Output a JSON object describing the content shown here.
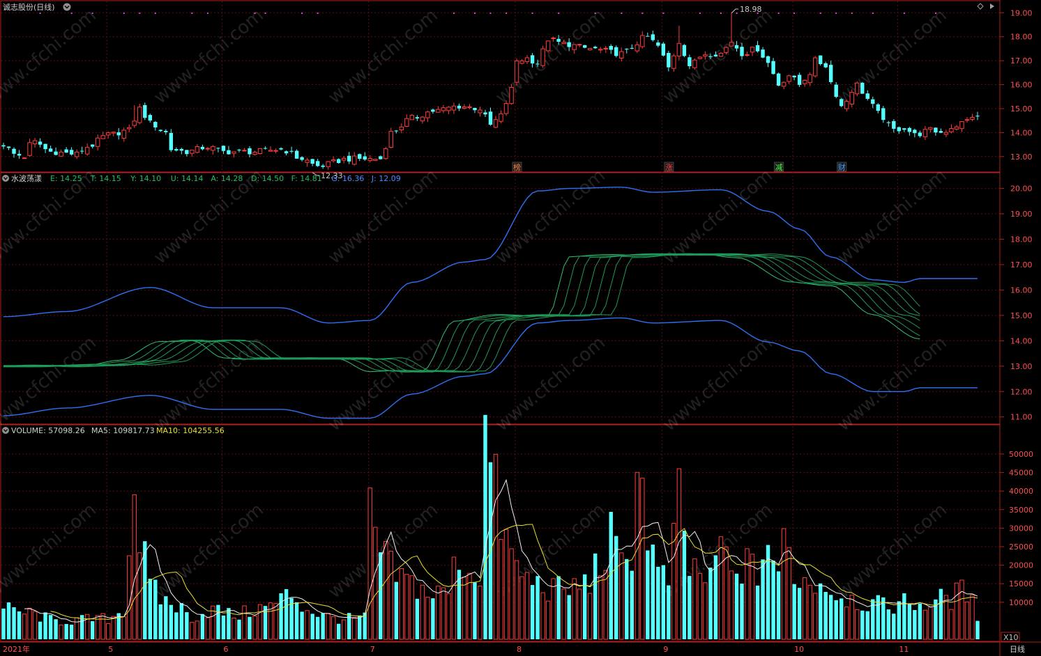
{
  "header": {
    "title": "诚志股份(日线)",
    "indicator_name": "水波荡漾",
    "indicator_values": [
      {
        "key": "E",
        "val": "14.25",
        "color": "#22c060"
      },
      {
        "key": "T",
        "val": "14.15",
        "color": "#22c060"
      },
      {
        "key": "Y",
        "val": "14.10",
        "color": "#22c060"
      },
      {
        "key": "U",
        "val": "14.14",
        "color": "#22c060"
      },
      {
        "key": "A",
        "val": "14.28",
        "color": "#22c060"
      },
      {
        "key": "D",
        "val": "14.50",
        "color": "#22c060"
      },
      {
        "key": "F",
        "val": "14.81",
        "color": "#22c060"
      },
      {
        "key": "G",
        "val": "16.36",
        "color": "#4a8cff"
      },
      {
        "key": "J",
        "val": "12.09",
        "color": "#4a8cff"
      }
    ],
    "volume_label": "VOLUME: 57098.26",
    "ma5_label": "MA5: 109817.73",
    "ma10_label": "MA10: 104255.56",
    "volume_unit": "X10",
    "period_label": "日线",
    "watermark": "www.cfchi.com"
  },
  "chart_data": {
    "type": "candlestick",
    "price_axis": {
      "ylim": [
        12.5,
        19.3
      ],
      "ticks": [
        13.0,
        14.0,
        15.0,
        16.0,
        17.0,
        18.0,
        19.0
      ]
    },
    "indicator_axis": {
      "ylim": [
        10.8,
        20.4
      ],
      "ticks": [
        11.0,
        12.0,
        13.0,
        14.0,
        15.0,
        16.0,
        17.0,
        18.0,
        19.0,
        20.0
      ]
    },
    "volume_axis": {
      "ylim": [
        0,
        56000
      ],
      "ticks": [
        10000,
        15000,
        20000,
        25000,
        30000,
        35000,
        40000,
        45000,
        50000
      ]
    },
    "x_labels": [
      {
        "i": 0,
        "text": "2021年"
      },
      {
        "i": 20,
        "text": "5"
      },
      {
        "i": 42,
        "text": "6"
      },
      {
        "i": 70,
        "text": "7"
      },
      {
        "i": 98,
        "text": "8"
      },
      {
        "i": 126,
        "text": "9"
      },
      {
        "i": 151,
        "text": "10"
      },
      {
        "i": 171,
        "text": "11"
      }
    ],
    "annotations": [
      {
        "text": "18.98",
        "i": 139,
        "value": 18.98
      },
      {
        "text": "12.33",
        "i": 59,
        "value": 12.33
      }
    ],
    "event_markers": [
      {
        "text": "榜",
        "i": 98,
        "color": "#ff8040"
      },
      {
        "text": "涨",
        "i": 127,
        "color": "#ff4040"
      },
      {
        "text": "减",
        "i": 148,
        "color": "#40ff40"
      },
      {
        "text": "财",
        "i": 160,
        "color": "#40a0ff"
      }
    ],
    "close_anchors": [
      [
        0,
        13.5
      ],
      [
        2,
        13.1
      ],
      [
        4,
        13.0
      ],
      [
        5,
        13.5
      ],
      [
        6,
        13.6
      ],
      [
        9,
        13.2
      ],
      [
        14,
        13.1
      ],
      [
        16,
        13.4
      ],
      [
        20,
        13.9
      ],
      [
        24,
        14.1
      ],
      [
        26,
        15.0
      ],
      [
        28,
        14.4
      ],
      [
        31,
        14.0
      ],
      [
        32,
        13.3
      ],
      [
        35,
        13.2
      ],
      [
        39,
        13.4
      ],
      [
        42,
        13.2
      ],
      [
        48,
        13.2
      ],
      [
        53,
        13.3
      ],
      [
        57,
        12.9
      ],
      [
        60,
        12.6
      ],
      [
        66,
        12.9
      ],
      [
        72,
        12.9
      ],
      [
        74,
        14.0
      ],
      [
        78,
        14.6
      ],
      [
        82,
        14.9
      ],
      [
        87,
        15.1
      ],
      [
        91,
        15.0
      ],
      [
        93,
        14.3
      ],
      [
        95,
        14.7
      ],
      [
        97,
        15.8
      ],
      [
        98,
        17.0
      ],
      [
        100,
        17.1
      ],
      [
        102,
        16.9
      ],
      [
        104,
        17.9
      ],
      [
        107,
        17.7
      ],
      [
        112,
        17.5
      ],
      [
        118,
        17.3
      ],
      [
        123,
        18.0
      ],
      [
        125,
        17.6
      ],
      [
        127,
        16.7
      ],
      [
        129,
        17.8
      ],
      [
        131,
        16.8
      ],
      [
        134,
        17.3
      ],
      [
        137,
        17.3
      ],
      [
        139,
        17.8
      ],
      [
        141,
        17.3
      ],
      [
        144,
        17.5
      ],
      [
        146,
        16.9
      ],
      [
        148,
        16.0
      ],
      [
        150,
        16.4
      ],
      [
        152,
        16.0
      ],
      [
        154,
        16.5
      ],
      [
        155,
        17.0
      ],
      [
        157,
        16.8
      ],
      [
        158,
        16.1
      ],
      [
        160,
        15.1
      ],
      [
        163,
        16.0
      ],
      [
        165,
        15.4
      ],
      [
        167,
        14.8
      ],
      [
        170,
        14.1
      ],
      [
        172,
        14.2
      ],
      [
        174,
        13.9
      ],
      [
        177,
        14.1
      ],
      [
        179,
        14.0
      ],
      [
        182,
        14.3
      ],
      [
        184,
        14.5
      ],
      [
        185,
        14.7
      ],
      [
        186,
        14.6
      ]
    ],
    "candle_count": 187,
    "volume_anchors": [
      [
        0,
        8000
      ],
      [
        5,
        7000
      ],
      [
        10,
        5000
      ],
      [
        20,
        5500
      ],
      [
        23,
        8000
      ],
      [
        25,
        42000
      ],
      [
        26,
        28000
      ],
      [
        28,
        14000
      ],
      [
        30,
        11000
      ],
      [
        33,
        9000
      ],
      [
        36,
        6000
      ],
      [
        40,
        8000
      ],
      [
        44,
        6500
      ],
      [
        50,
        8500
      ],
      [
        55,
        12000
      ],
      [
        58,
        8000
      ],
      [
        62,
        6000
      ],
      [
        66,
        5500
      ],
      [
        69,
        6000
      ],
      [
        70,
        33000
      ],
      [
        72,
        23000
      ],
      [
        75,
        17000
      ],
      [
        78,
        15000
      ],
      [
        82,
        12000
      ],
      [
        85,
        13000
      ],
      [
        87,
        24000
      ],
      [
        88,
        19000
      ],
      [
        91,
        18000
      ],
      [
        92,
        55000
      ],
      [
        94,
        39000
      ],
      [
        96,
        26000
      ],
      [
        98,
        19000
      ],
      [
        100,
        16000
      ],
      [
        104,
        14000
      ],
      [
        107,
        13000
      ],
      [
        111,
        15000
      ],
      [
        114,
        20000
      ],
      [
        116,
        27000
      ],
      [
        118,
        19000
      ],
      [
        120,
        25000
      ],
      [
        121,
        49000
      ],
      [
        123,
        30000
      ],
      [
        125,
        17000
      ],
      [
        127,
        16000
      ],
      [
        129,
        36000
      ],
      [
        131,
        19000
      ],
      [
        133,
        18000
      ],
      [
        135,
        15000
      ],
      [
        137,
        27000
      ],
      [
        139,
        16000
      ],
      [
        141,
        20000
      ],
      [
        144,
        18000
      ],
      [
        146,
        27000
      ],
      [
        148,
        15000
      ],
      [
        149,
        28000
      ],
      [
        151,
        18000
      ],
      [
        154,
        15000
      ],
      [
        156,
        16000
      ],
      [
        158,
        13000
      ],
      [
        160,
        12000
      ],
      [
        164,
        10000
      ],
      [
        168,
        9000
      ],
      [
        172,
        10000
      ],
      [
        176,
        9500
      ],
      [
        180,
        11000
      ],
      [
        184,
        13000
      ],
      [
        186,
        6000
      ]
    ],
    "band_anchors": [
      [
        0,
        14.95,
        11.05
      ],
      [
        12,
        15.15,
        11.35
      ],
      [
        28,
        16.1,
        11.85
      ],
      [
        40,
        15.3,
        11.3
      ],
      [
        53,
        15.3,
        11.3
      ],
      [
        62,
        14.7,
        10.95
      ],
      [
        70,
        14.8,
        10.95
      ],
      [
        78,
        16.3,
        11.9
      ],
      [
        88,
        17.1,
        12.6
      ],
      [
        92,
        17.2,
        12.7
      ],
      [
        102,
        19.9,
        14.7
      ],
      [
        108,
        20.0,
        14.8
      ],
      [
        118,
        20.05,
        14.9
      ],
      [
        124,
        19.85,
        14.7
      ],
      [
        137,
        19.95,
        14.8
      ],
      [
        146,
        19.1,
        13.95
      ],
      [
        152,
        18.4,
        13.6
      ],
      [
        158,
        17.3,
        12.7
      ],
      [
        166,
        16.4,
        12.0
      ],
      [
        172,
        16.3,
        12.0
      ],
      [
        175,
        16.45,
        12.15
      ]
    ],
    "wave_series": [
      {
        "name": "E",
        "base": [
          [
            0,
            13.0
          ],
          [
            16,
            13.05
          ],
          [
            22,
            13.2
          ],
          [
            30,
            14.0
          ],
          [
            36,
            14.0
          ],
          [
            42,
            13.3
          ],
          [
            64,
            13.3
          ],
          [
            70,
            12.8
          ],
          [
            80,
            12.8
          ],
          [
            86,
            14.8
          ],
          [
            94,
            15.0
          ],
          [
            104,
            15.0
          ],
          [
            108,
            17.3
          ],
          [
            118,
            17.4
          ],
          [
            134,
            17.4
          ],
          [
            140,
            17.3
          ],
          [
            150,
            16.3
          ],
          [
            158,
            16.2
          ],
          [
            166,
            15.0
          ],
          [
            175,
            14.1
          ]
        ]
      },
      {
        "name": "T",
        "shift": 2
      },
      {
        "name": "Y",
        "shift": 4
      },
      {
        "name": "U",
        "shift": 6
      },
      {
        "name": "A",
        "shift": 8
      },
      {
        "name": "D",
        "shift": 10
      },
      {
        "name": "F",
        "shift": 12
      }
    ],
    "purple_markers": [
      7,
      13,
      17,
      23,
      26,
      29,
      36,
      39,
      48,
      50,
      57,
      60,
      86,
      90,
      93,
      96,
      101,
      106,
      113,
      118,
      122,
      126,
      133,
      137,
      140,
      144,
      148,
      151,
      156,
      159,
      162,
      166,
      172,
      178
    ]
  }
}
